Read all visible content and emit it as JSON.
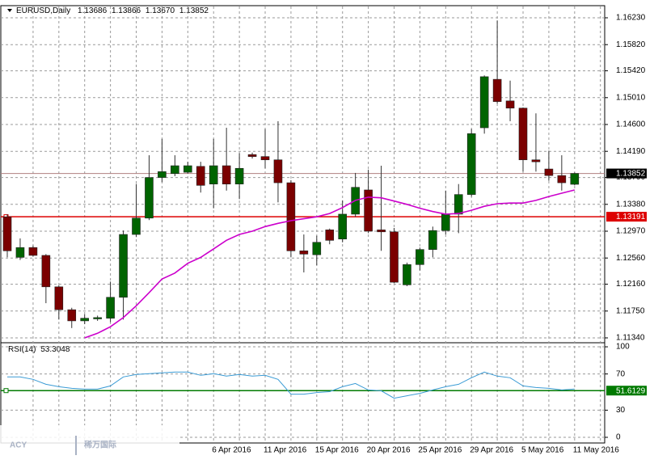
{
  "chart_data": [
    {
      "type": "candlestick",
      "title": "EURUSD,Daily",
      "ohlc": [
        "1.13686",
        "1.13866",
        "1.13670",
        "1.13852"
      ],
      "categories": [
        null,
        null,
        null,
        null,
        null,
        null,
        null,
        null,
        null,
        null,
        null,
        null,
        null,
        null,
        null,
        null,
        "6 Apr 2016",
        null,
        null,
        null,
        "11 Apr 2016",
        null,
        null,
        null,
        "15 Apr 2016",
        null,
        null,
        null,
        "20 Apr 2016",
        null,
        null,
        null,
        "25 Apr 2016",
        null,
        null,
        null,
        "29 Apr 2016",
        null,
        null,
        null,
        "5 May 2016",
        null,
        null,
        null,
        "11 May 2016"
      ],
      "open": [
        1.1319,
        1.1257,
        1.1272,
        1.126,
        1.1212,
        1.1177,
        1.116,
        1.1163,
        1.1164,
        1.1196,
        1.1292,
        1.1317,
        1.1379,
        1.1385,
        1.1387,
        1.1396,
        1.1369,
        1.1397,
        1.1369,
        1.1414,
        1.1411,
        1.1406,
        1.1371,
        1.1267,
        1.1261,
        1.1299,
        1.1285,
        1.1323,
        1.136,
        1.1299,
        1.1296,
        1.1215,
        1.1246,
        1.1269,
        1.1298,
        1.1323,
        1.1353,
        1.1455,
        1.1529,
        1.1496,
        1.1485,
        1.1406,
        1.1392,
        1.1382,
        1.13686
      ],
      "high": [
        1.1323,
        1.1286,
        1.1275,
        1.1262,
        1.1214,
        1.118,
        1.117,
        1.1168,
        1.122,
        1.1298,
        1.1369,
        1.1413,
        1.1438,
        1.1413,
        1.1403,
        1.1403,
        1.1438,
        1.1455,
        1.1416,
        1.1417,
        1.1453,
        1.1465,
        1.1375,
        1.1292,
        1.129,
        1.1301,
        1.1344,
        1.1386,
        1.1391,
        1.1397,
        1.1302,
        1.1249,
        1.1272,
        1.1304,
        1.1359,
        1.1369,
        1.1453,
        1.1535,
        1.1619,
        1.1527,
        1.1486,
        1.1477,
        1.142,
        1.1413,
        1.13866
      ],
      "low": [
        1.1257,
        1.1253,
        1.1258,
        1.1187,
        1.1162,
        1.1149,
        1.1155,
        1.116,
        1.1158,
        1.1162,
        1.1288,
        1.1314,
        1.1372,
        1.1381,
        1.1385,
        1.1356,
        1.1332,
        1.1359,
        1.1346,
        1.1408,
        1.1393,
        1.1341,
        1.1257,
        1.1234,
        1.1245,
        1.1277,
        1.128,
        1.1319,
        1.1294,
        1.1267,
        1.1218,
        1.1213,
        1.1237,
        1.1257,
        1.1292,
        1.1294,
        1.135,
        1.1446,
        1.1492,
        1.1465,
        1.1388,
        1.1388,
        1.1374,
        1.1359,
        1.1367
      ],
      "close": [
        1.1267,
        1.1272,
        1.126,
        1.1212,
        1.1177,
        1.116,
        1.1164,
        1.1165,
        1.1196,
        1.1292,
        1.1317,
        1.1379,
        1.1388,
        1.1397,
        1.1397,
        1.1367,
        1.1397,
        1.1369,
        1.1393,
        1.1411,
        1.1406,
        1.1371,
        1.1267,
        1.1262,
        1.128,
        1.1283,
        1.1323,
        1.1364,
        1.1297,
        1.1296,
        1.1219,
        1.1246,
        1.1269,
        1.1298,
        1.1323,
        1.1353,
        1.1446,
        1.1533,
        1.1495,
        1.1485,
        1.1406,
        1.1403,
        1.1382,
        1.1371,
        1.13852
      ],
      "up_color": "#006400",
      "down_color": "#7b0000",
      "moving_average": {
        "color": "#cc00cc",
        "values": [
          null,
          null,
          null,
          null,
          null,
          null,
          1.1134,
          1.1141,
          1.1151,
          1.1165,
          1.1183,
          1.1203,
          1.1224,
          1.1233,
          1.1248,
          1.1257,
          1.127,
          1.1283,
          1.1292,
          1.1297,
          1.1304,
          1.1309,
          1.1313,
          1.1316,
          1.1319,
          1.1324,
          1.1333,
          1.1344,
          1.1349,
          1.1348,
          1.1343,
          1.1338,
          1.1332,
          1.1327,
          1.1323,
          1.1324,
          1.1329,
          1.1335,
          1.1339,
          1.134,
          1.134,
          1.1344,
          1.135,
          1.1355,
          1.136
        ]
      },
      "current_price": 1.13852,
      "current_price_color": "#000000",
      "level": 1.13191,
      "level_color": "#dd0000",
      "ylim": [
        1.11278,
        1.16403
      ],
      "yticks": [
        {
          "value": 1.1623,
          "label": "1.16230"
        },
        {
          "value": 1.1582,
          "label": "1.15820"
        },
        {
          "value": 1.1542,
          "label": "1.15420"
        },
        {
          "value": 1.1501,
          "label": "1.15010"
        },
        {
          "value": 1.146,
          "label": "1.14600"
        },
        {
          "value": 1.1419,
          "label": "1.14190"
        },
        {
          "value": 1.1379,
          "label": "1.13790"
        },
        {
          "value": 1.1338,
          "label": "1.13380"
        },
        {
          "value": 1.1297,
          "label": "1.12970"
        },
        {
          "value": 1.1256,
          "label": "1.12560"
        },
        {
          "value": 1.1216,
          "label": "1.12160"
        },
        {
          "value": 1.1175,
          "label": "1.11750"
        },
        {
          "value": 1.1134,
          "label": "1.11340"
        }
      ],
      "grid": true
    },
    {
      "type": "line",
      "title": "RSI(14)",
      "last_value": 53.3048,
      "color": "#3a9bd5",
      "values": [
        66.7,
        66.7,
        64.0,
        58.6,
        55.9,
        54.1,
        53.2,
        53.2,
        56.8,
        66.7,
        69.4,
        70.3,
        71.2,
        72.1,
        72.1,
        68.5,
        70.3,
        67.6,
        69.4,
        67.6,
        68.5,
        64.0,
        47.7,
        47.7,
        49.5,
        50.5,
        55.9,
        59.5,
        52.3,
        51.4,
        43.2,
        45.9,
        48.6,
        52.3,
        55.9,
        58.6,
        65.8,
        72.1,
        67.6,
        65.8,
        56.8,
        55.0,
        54.1,
        52.3,
        53.3048
      ],
      "level": 51.6129,
      "level_color": "#007a00",
      "ylim": [
        -6.25,
        103.6
      ],
      "yticks": [
        0,
        30,
        70,
        100
      ],
      "grid": true
    }
  ],
  "watermark": {
    "brand": "ACY",
    "name": "稀万国际"
  }
}
